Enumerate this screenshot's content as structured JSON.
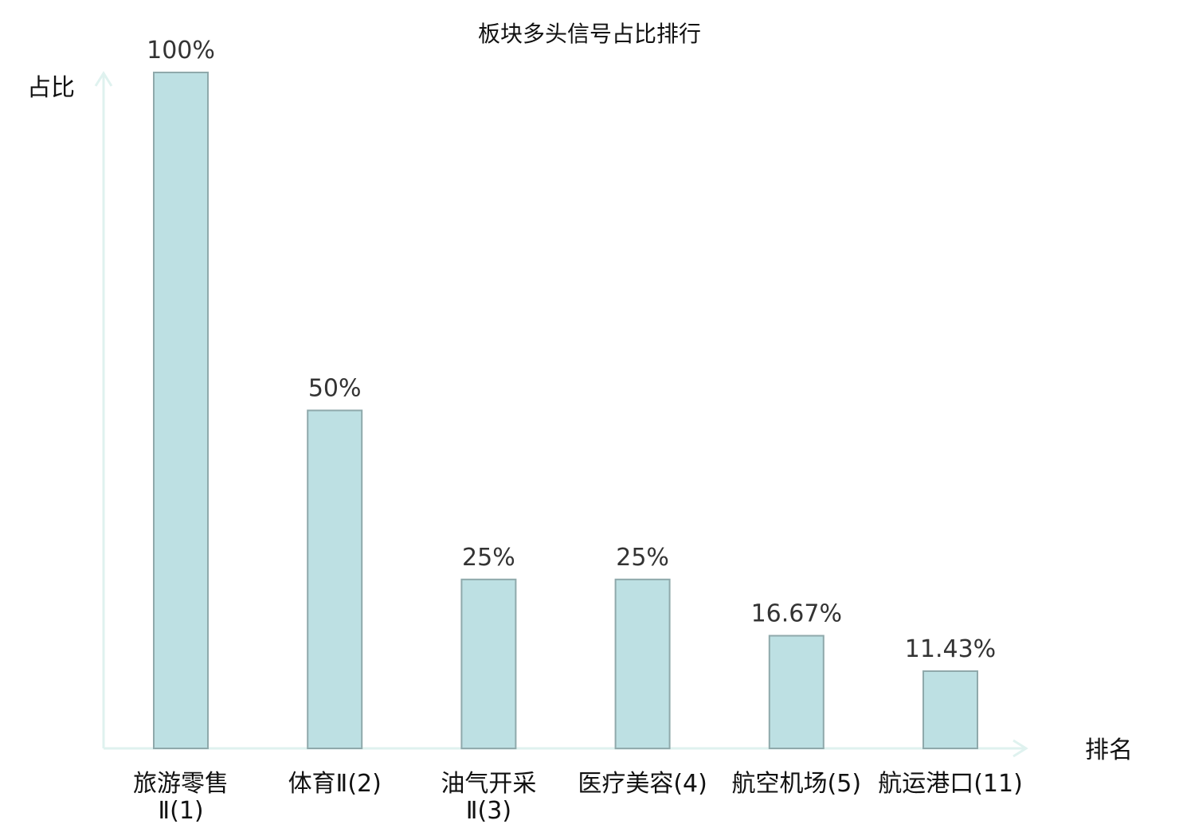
{
  "chart_data": {
    "type": "bar",
    "title": "板块多头信号占比排行",
    "xlabel": "排名",
    "ylabel": "占比",
    "ylim": [
      0,
      100
    ],
    "grid": false,
    "legend": "none",
    "categories": [
      {
        "lines": [
          "旅游零售",
          "Ⅱ(1)"
        ],
        "highlight": false
      },
      {
        "lines": [
          "体育Ⅱ(2)"
        ],
        "highlight": false
      },
      {
        "lines": [
          "油气开采",
          "Ⅱ(3)"
        ],
        "highlight": false
      },
      {
        "lines": [
          "医疗美容(4)"
        ],
        "highlight": false
      },
      {
        "lines": [
          "航空机场(5)"
        ],
        "highlight": false
      },
      {
        "lines": [
          "航运港口(11)"
        ],
        "highlight": true
      }
    ],
    "values": [
      100,
      50,
      25,
      25,
      16.67,
      11.43
    ],
    "value_labels": [
      "100%",
      "50%",
      "25%",
      "25%",
      "16.67%",
      "11.43%"
    ],
    "colors": {
      "bar_fill": "#bde0e3",
      "bar_stroke": "#8fa9ab",
      "axis": "#dff2ef",
      "highlight_text": "#e31a1c",
      "text": "#111111"
    }
  }
}
